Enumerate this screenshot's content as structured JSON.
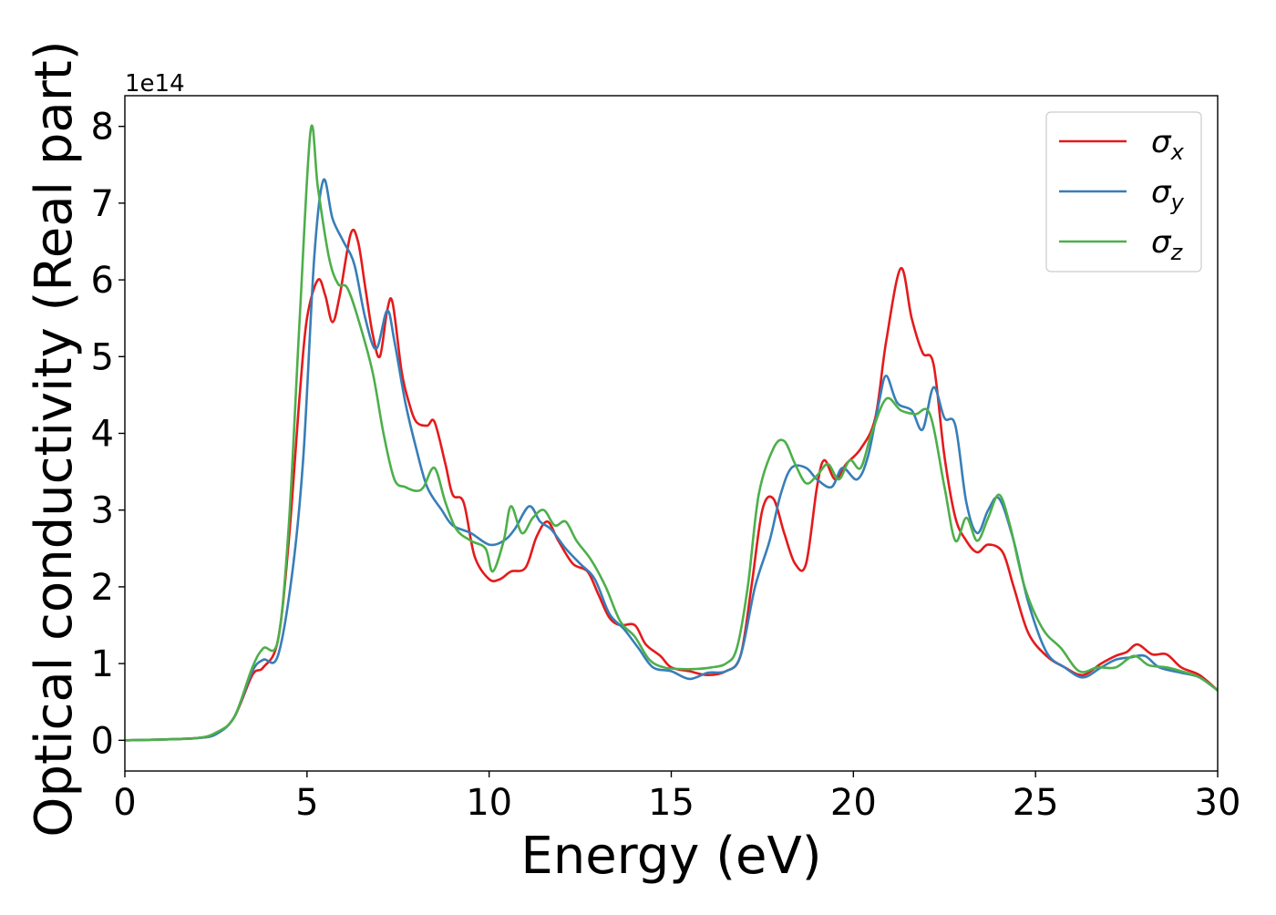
{
  "chart_data": {
    "type": "line",
    "title": "",
    "xlabel": "Energy (eV)",
    "ylabel": "Optical conductivity (Real part)",
    "y_offset_label": "1e14",
    "xlim": [
      0,
      30
    ],
    "ylim": [
      -0.4,
      8.4
    ],
    "x_ticks": [
      0,
      5,
      10,
      15,
      20,
      25,
      30
    ],
    "x_tick_labels": [
      "0",
      "5",
      "10",
      "15",
      "20",
      "25",
      "30"
    ],
    "y_ticks": [
      0,
      1,
      2,
      3,
      4,
      5,
      6,
      7,
      8
    ],
    "y_tick_labels": [
      "0",
      "1",
      "2",
      "3",
      "4",
      "5",
      "6",
      "7",
      "8"
    ],
    "grid": false,
    "legend_position": "top-right",
    "series": [
      {
        "name": "σ_x",
        "legend_main": "σ",
        "legend_sub": "x",
        "color": "#e41a1c",
        "points": [
          [
            0,
            0
          ],
          [
            1,
            0.01
          ],
          [
            2,
            0.03
          ],
          [
            2.5,
            0.08
          ],
          [
            3,
            0.3
          ],
          [
            3.5,
            0.85
          ],
          [
            3.8,
            0.95
          ],
          [
            4.2,
            1.3
          ],
          [
            4.5,
            2.6
          ],
          [
            4.8,
            4.5
          ],
          [
            5.0,
            5.5
          ],
          [
            5.3,
            6.0
          ],
          [
            5.5,
            5.8
          ],
          [
            5.7,
            5.45
          ],
          [
            5.9,
            5.8
          ],
          [
            6.2,
            6.6
          ],
          [
            6.4,
            6.5
          ],
          [
            6.6,
            5.9
          ],
          [
            6.8,
            5.3
          ],
          [
            7.0,
            5.0
          ],
          [
            7.2,
            5.6
          ],
          [
            7.35,
            5.7
          ],
          [
            7.6,
            4.8
          ],
          [
            7.8,
            4.4
          ],
          [
            8.0,
            4.15
          ],
          [
            8.3,
            4.1
          ],
          [
            8.5,
            4.15
          ],
          [
            8.8,
            3.6
          ],
          [
            9.0,
            3.2
          ],
          [
            9.3,
            3.1
          ],
          [
            9.6,
            2.4
          ],
          [
            10.0,
            2.1
          ],
          [
            10.3,
            2.1
          ],
          [
            10.6,
            2.2
          ],
          [
            11.0,
            2.25
          ],
          [
            11.3,
            2.65
          ],
          [
            11.6,
            2.85
          ],
          [
            11.9,
            2.6
          ],
          [
            12.3,
            2.3
          ],
          [
            12.7,
            2.2
          ],
          [
            13.0,
            1.9
          ],
          [
            13.3,
            1.6
          ],
          [
            13.6,
            1.5
          ],
          [
            14.0,
            1.5
          ],
          [
            14.3,
            1.25
          ],
          [
            14.7,
            1.1
          ],
          [
            15.0,
            0.95
          ],
          [
            15.5,
            0.9
          ],
          [
            16.0,
            0.85
          ],
          [
            16.5,
            0.9
          ],
          [
            16.9,
            1.1
          ],
          [
            17.2,
            2.0
          ],
          [
            17.5,
            3.0
          ],
          [
            17.8,
            3.15
          ],
          [
            18.1,
            2.7
          ],
          [
            18.4,
            2.3
          ],
          [
            18.7,
            2.3
          ],
          [
            19.0,
            3.3
          ],
          [
            19.2,
            3.65
          ],
          [
            19.5,
            3.4
          ],
          [
            19.8,
            3.6
          ],
          [
            20.2,
            3.8
          ],
          [
            20.6,
            4.2
          ],
          [
            20.9,
            5.2
          ],
          [
            21.3,
            6.15
          ],
          [
            21.6,
            5.5
          ],
          [
            21.9,
            5.05
          ],
          [
            22.2,
            4.9
          ],
          [
            22.5,
            3.7
          ],
          [
            22.8,
            2.9
          ],
          [
            23.1,
            2.6
          ],
          [
            23.4,
            2.45
          ],
          [
            23.7,
            2.55
          ],
          [
            24.1,
            2.45
          ],
          [
            24.4,
            2.0
          ],
          [
            24.8,
            1.4
          ],
          [
            25.3,
            1.1
          ],
          [
            25.8,
            0.95
          ],
          [
            26.3,
            0.85
          ],
          [
            26.8,
            1.0
          ],
          [
            27.2,
            1.1
          ],
          [
            27.5,
            1.15
          ],
          [
            27.8,
            1.25
          ],
          [
            28.2,
            1.12
          ],
          [
            28.6,
            1.12
          ],
          [
            29.0,
            0.95
          ],
          [
            29.5,
            0.85
          ],
          [
            30,
            0.65
          ]
        ]
      },
      {
        "name": "σ_y",
        "legend_main": "σ",
        "legend_sub": "y",
        "color": "#377eb8",
        "points": [
          [
            0,
            0
          ],
          [
            1,
            0.01
          ],
          [
            2,
            0.03
          ],
          [
            2.5,
            0.08
          ],
          [
            3,
            0.3
          ],
          [
            3.5,
            0.9
          ],
          [
            3.8,
            1.05
          ],
          [
            4.2,
            1.1
          ],
          [
            4.6,
            2.2
          ],
          [
            4.9,
            3.7
          ],
          [
            5.2,
            6.3
          ],
          [
            5.45,
            7.3
          ],
          [
            5.7,
            6.8
          ],
          [
            6.0,
            6.5
          ],
          [
            6.3,
            6.2
          ],
          [
            6.6,
            5.5
          ],
          [
            6.9,
            5.1
          ],
          [
            7.2,
            5.6
          ],
          [
            7.4,
            5.2
          ],
          [
            7.7,
            4.4
          ],
          [
            8.0,
            3.8
          ],
          [
            8.3,
            3.3
          ],
          [
            8.7,
            3.0
          ],
          [
            9.0,
            2.8
          ],
          [
            9.5,
            2.7
          ],
          [
            10.0,
            2.55
          ],
          [
            10.4,
            2.6
          ],
          [
            10.7,
            2.75
          ],
          [
            11.1,
            3.05
          ],
          [
            11.4,
            2.85
          ],
          [
            11.7,
            2.75
          ],
          [
            12.1,
            2.5
          ],
          [
            12.5,
            2.3
          ],
          [
            12.9,
            2.1
          ],
          [
            13.3,
            1.65
          ],
          [
            13.7,
            1.45
          ],
          [
            14.1,
            1.2
          ],
          [
            14.5,
            0.95
          ],
          [
            15.0,
            0.9
          ],
          [
            15.5,
            0.8
          ],
          [
            16.0,
            0.88
          ],
          [
            16.5,
            0.9
          ],
          [
            16.9,
            1.1
          ],
          [
            17.3,
            2.0
          ],
          [
            17.7,
            2.6
          ],
          [
            18.0,
            3.2
          ],
          [
            18.3,
            3.55
          ],
          [
            18.7,
            3.55
          ],
          [
            19.0,
            3.4
          ],
          [
            19.4,
            3.3
          ],
          [
            19.7,
            3.55
          ],
          [
            20.1,
            3.4
          ],
          [
            20.4,
            3.7
          ],
          [
            20.7,
            4.4
          ],
          [
            20.9,
            4.75
          ],
          [
            21.2,
            4.4
          ],
          [
            21.6,
            4.3
          ],
          [
            21.9,
            4.05
          ],
          [
            22.2,
            4.6
          ],
          [
            22.5,
            4.2
          ],
          [
            22.8,
            4.1
          ],
          [
            23.1,
            3.1
          ],
          [
            23.4,
            2.7
          ],
          [
            23.7,
            3.0
          ],
          [
            24.0,
            3.15
          ],
          [
            24.4,
            2.6
          ],
          [
            24.8,
            1.8
          ],
          [
            25.3,
            1.15
          ],
          [
            25.8,
            0.95
          ],
          [
            26.3,
            0.82
          ],
          [
            26.8,
            0.95
          ],
          [
            27.2,
            1.05
          ],
          [
            27.6,
            1.08
          ],
          [
            28.0,
            1.1
          ],
          [
            28.4,
            0.95
          ],
          [
            29.0,
            0.88
          ],
          [
            29.5,
            0.82
          ],
          [
            30,
            0.65
          ]
        ]
      },
      {
        "name": "σ_z",
        "legend_main": "σ",
        "legend_sub": "z",
        "color": "#4daf4a",
        "points": [
          [
            0,
            0
          ],
          [
            1,
            0.01
          ],
          [
            2,
            0.03
          ],
          [
            2.5,
            0.1
          ],
          [
            3,
            0.3
          ],
          [
            3.5,
            0.95
          ],
          [
            3.8,
            1.2
          ],
          [
            4.2,
            1.3
          ],
          [
            4.5,
            2.8
          ],
          [
            4.8,
            5.5
          ],
          [
            5.1,
            7.95
          ],
          [
            5.3,
            7.2
          ],
          [
            5.6,
            6.3
          ],
          [
            5.85,
            5.95
          ],
          [
            6.1,
            5.9
          ],
          [
            6.4,
            5.5
          ],
          [
            6.8,
            4.8
          ],
          [
            7.1,
            4.0
          ],
          [
            7.4,
            3.4
          ],
          [
            7.7,
            3.3
          ],
          [
            8.0,
            3.25
          ],
          [
            8.2,
            3.3
          ],
          [
            8.5,
            3.55
          ],
          [
            8.8,
            3.1
          ],
          [
            9.1,
            2.75
          ],
          [
            9.5,
            2.6
          ],
          [
            9.9,
            2.5
          ],
          [
            10.1,
            2.2
          ],
          [
            10.4,
            2.6
          ],
          [
            10.6,
            3.05
          ],
          [
            10.9,
            2.7
          ],
          [
            11.2,
            2.9
          ],
          [
            11.5,
            3.0
          ],
          [
            11.8,
            2.8
          ],
          [
            12.1,
            2.85
          ],
          [
            12.4,
            2.6
          ],
          [
            12.8,
            2.35
          ],
          [
            13.2,
            2.0
          ],
          [
            13.6,
            1.55
          ],
          [
            14.0,
            1.35
          ],
          [
            14.4,
            1.05
          ],
          [
            14.8,
            0.95
          ],
          [
            15.2,
            0.93
          ],
          [
            15.7,
            0.93
          ],
          [
            16.1,
            0.95
          ],
          [
            16.5,
            1.0
          ],
          [
            16.8,
            1.2
          ],
          [
            17.1,
            2.0
          ],
          [
            17.4,
            3.2
          ],
          [
            17.8,
            3.8
          ],
          [
            18.1,
            3.9
          ],
          [
            18.4,
            3.6
          ],
          [
            18.7,
            3.35
          ],
          [
            19.0,
            3.45
          ],
          [
            19.3,
            3.6
          ],
          [
            19.6,
            3.4
          ],
          [
            19.9,
            3.65
          ],
          [
            20.2,
            3.55
          ],
          [
            20.5,
            4.0
          ],
          [
            20.9,
            4.45
          ],
          [
            21.3,
            4.3
          ],
          [
            21.7,
            4.25
          ],
          [
            22.1,
            4.25
          ],
          [
            22.5,
            3.3
          ],
          [
            22.8,
            2.6
          ],
          [
            23.1,
            2.9
          ],
          [
            23.4,
            2.6
          ],
          [
            23.7,
            2.9
          ],
          [
            24.0,
            3.2
          ],
          [
            24.3,
            2.8
          ],
          [
            24.7,
            2.0
          ],
          [
            25.2,
            1.45
          ],
          [
            25.7,
            1.2
          ],
          [
            26.2,
            0.9
          ],
          [
            26.7,
            0.95
          ],
          [
            27.2,
            0.95
          ],
          [
            27.7,
            1.1
          ],
          [
            28.1,
            0.98
          ],
          [
            28.6,
            0.95
          ],
          [
            29.0,
            0.9
          ],
          [
            29.5,
            0.82
          ],
          [
            30,
            0.65
          ]
        ]
      }
    ]
  }
}
